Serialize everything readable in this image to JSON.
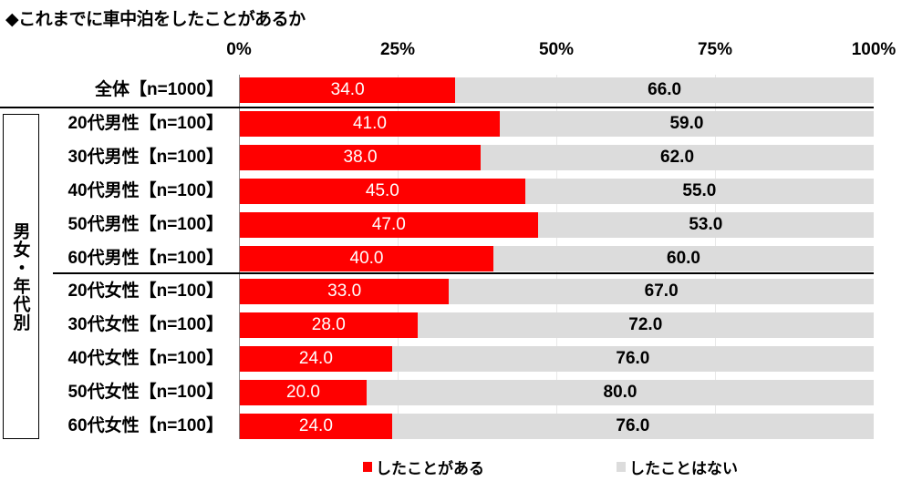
{
  "title": "◆これまでに車中泊をしたことがあるか",
  "axis": {
    "ticks": [
      "0%",
      "25%",
      "50%",
      "75%",
      "100%"
    ]
  },
  "group_label": "男女・年代別",
  "colors": {
    "yes": "#ff0000",
    "no": "#dcdcdc"
  },
  "legend": [
    {
      "label": "したことがある",
      "color": "#ff0000"
    },
    {
      "label": "したことはない",
      "color": "#dcdcdc"
    }
  ],
  "rows": [
    {
      "label": "全体【n=1000】",
      "yes": "34.0",
      "no": "66.0"
    },
    {
      "label": "20代男性【n=100】",
      "yes": "41.0",
      "no": "59.0"
    },
    {
      "label": "30代男性【n=100】",
      "yes": "38.0",
      "no": "62.0"
    },
    {
      "label": "40代男性【n=100】",
      "yes": "45.0",
      "no": "55.0"
    },
    {
      "label": "50代男性【n=100】",
      "yes": "47.0",
      "no": "53.0"
    },
    {
      "label": "60代男性【n=100】",
      "yes": "40.0",
      "no": "60.0"
    },
    {
      "label": "20代女性【n=100】",
      "yes": "33.0",
      "no": "67.0"
    },
    {
      "label": "30代女性【n=100】",
      "yes": "28.0",
      "no": "72.0"
    },
    {
      "label": "40代女性【n=100】",
      "yes": "24.0",
      "no": "76.0"
    },
    {
      "label": "50代女性【n=100】",
      "yes": "20.0",
      "no": "80.0"
    },
    {
      "label": "60代女性【n=100】",
      "yes": "24.0",
      "no": "76.0"
    }
  ],
  "chart_data": {
    "type": "bar",
    "orientation": "horizontal",
    "stacked": true,
    "title": "◆これまでに車中泊をしたことがあるか",
    "categories": [
      "全体【n=1000】",
      "20代男性【n=100】",
      "30代男性【n=100】",
      "40代男性【n=100】",
      "50代男性【n=100】",
      "60代男性【n=100】",
      "20代女性【n=100】",
      "30代女性【n=100】",
      "40代女性【n=100】",
      "50代女性【n=100】",
      "60代女性【n=100】"
    ],
    "series": [
      {
        "name": "したことがある",
        "color": "#ff0000",
        "values": [
          34.0,
          41.0,
          38.0,
          45.0,
          47.0,
          40.0,
          33.0,
          28.0,
          24.0,
          20.0,
          24.0
        ]
      },
      {
        "name": "したことはない",
        "color": "#dcdcdc",
        "values": [
          66.0,
          59.0,
          62.0,
          55.0,
          53.0,
          60.0,
          67.0,
          72.0,
          76.0,
          80.0,
          76.0
        ]
      }
    ],
    "xlabel": "",
    "ylabel": "",
    "xlim": [
      0,
      100
    ],
    "x_ticks": [
      "0%",
      "25%",
      "50%",
      "75%",
      "100%"
    ],
    "group_annotation": "男女・年代別",
    "legend_position": "bottom",
    "grid": true
  }
}
